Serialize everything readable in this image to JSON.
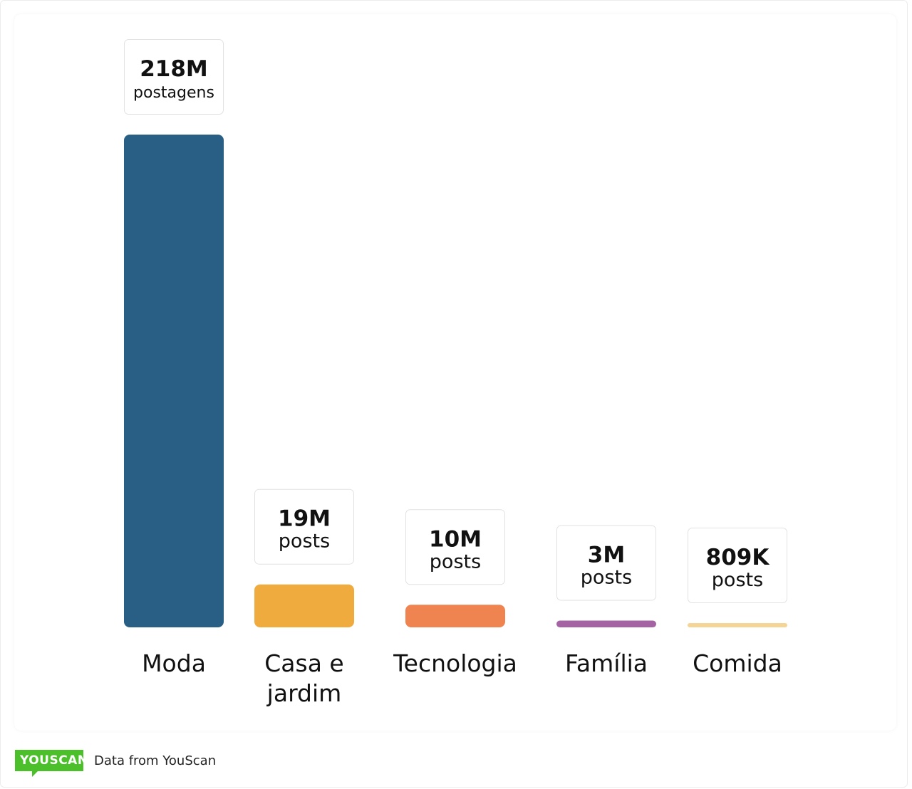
{
  "chart_data": {
    "type": "bar",
    "categories": [
      "Moda",
      "Casa e jardim",
      "Tecnologia",
      "Família",
      "Comida"
    ],
    "category_lines": [
      [
        "Moda"
      ],
      [
        "Casa e",
        "jardim"
      ],
      [
        "Tecnologia"
      ],
      [
        "Família"
      ],
      [
        "Comida"
      ]
    ],
    "values": [
      218000000,
      19000000,
      10000000,
      3000000,
      809000
    ],
    "value_labels": [
      "218M",
      "19M",
      "10M",
      "3M",
      "809K"
    ],
    "unit_labels": [
      "postagens",
      "posts",
      "posts",
      "posts",
      "posts"
    ],
    "colors": [
      "#295f85",
      "#f0ab3e",
      "#ef8451",
      "#a463a2",
      "#f4d596"
    ],
    "ylim": [
      0,
      218000000
    ],
    "title": "",
    "xlabel": "",
    "ylabel": ""
  },
  "footer": {
    "logo_text": "YOUSCAN",
    "source_text": "Data from YouScan",
    "brand_color": "#4cc02a"
  }
}
